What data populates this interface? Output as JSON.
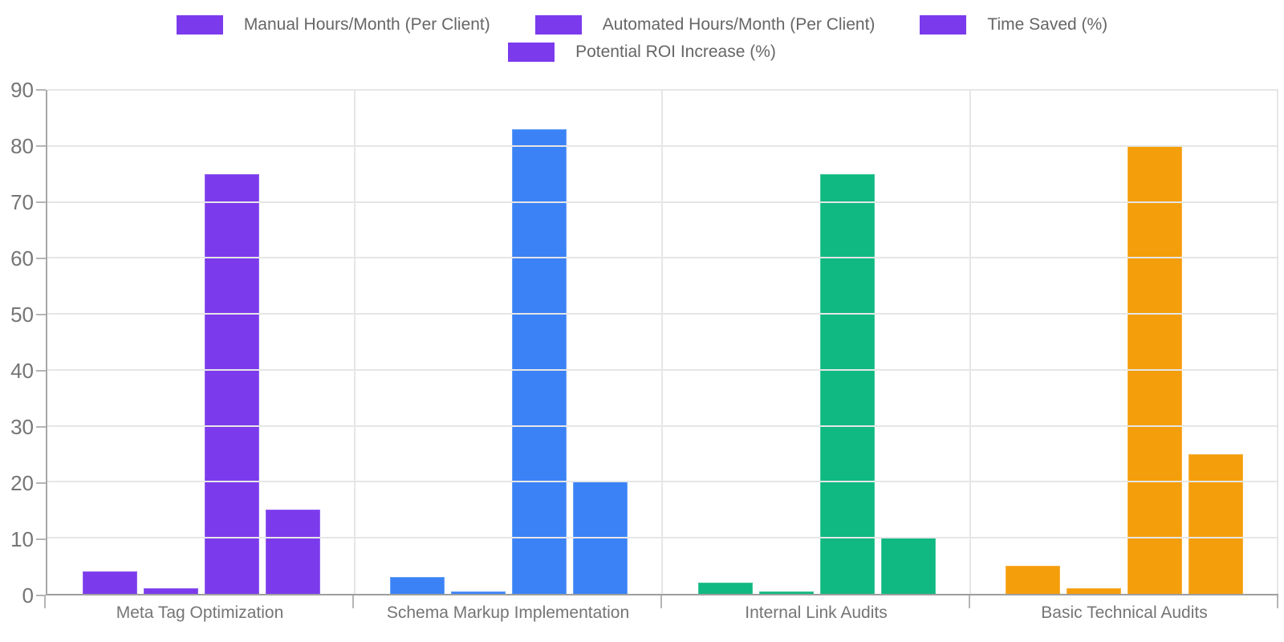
{
  "chart_data": {
    "type": "bar",
    "title": "",
    "xlabel": "",
    "ylabel": "",
    "categories": [
      "Meta Tag Optimization",
      "Schema Markup Implementation",
      "Internal Link Audits",
      "Basic Technical Audits"
    ],
    "series": [
      {
        "name": "Manual Hours/Month (Per Client)",
        "values": [
          4,
          3,
          2,
          5
        ]
      },
      {
        "name": "Automated Hours/Month (Per Client)",
        "values": [
          1,
          0.5,
          0.5,
          1
        ]
      },
      {
        "name": "Time Saved (%)",
        "values": [
          75,
          83,
          75,
          80
        ]
      },
      {
        "name": "Potential ROI Increase (%)",
        "values": [
          15,
          20,
          10,
          25
        ]
      }
    ],
    "category_colors": [
      "#7C3AED",
      "#3B82F6",
      "#10B981",
      "#F59E0B"
    ],
    "category_border_colors": [
      "#9161EF",
      "#66A1F8",
      "#3FC79C",
      "#F8B13E"
    ],
    "legend_swatch_color": "#7C3AED",
    "legend_position": "top",
    "legend_rows": [
      [
        0,
        1,
        2
      ],
      [
        3
      ]
    ],
    "ylim": [
      0,
      90
    ],
    "y_ticks": [
      0,
      10,
      20,
      30,
      40,
      50,
      60,
      70,
      80,
      90
    ],
    "grid": true,
    "colors_note": "each category group uses one color; legend swatches all use first color"
  }
}
